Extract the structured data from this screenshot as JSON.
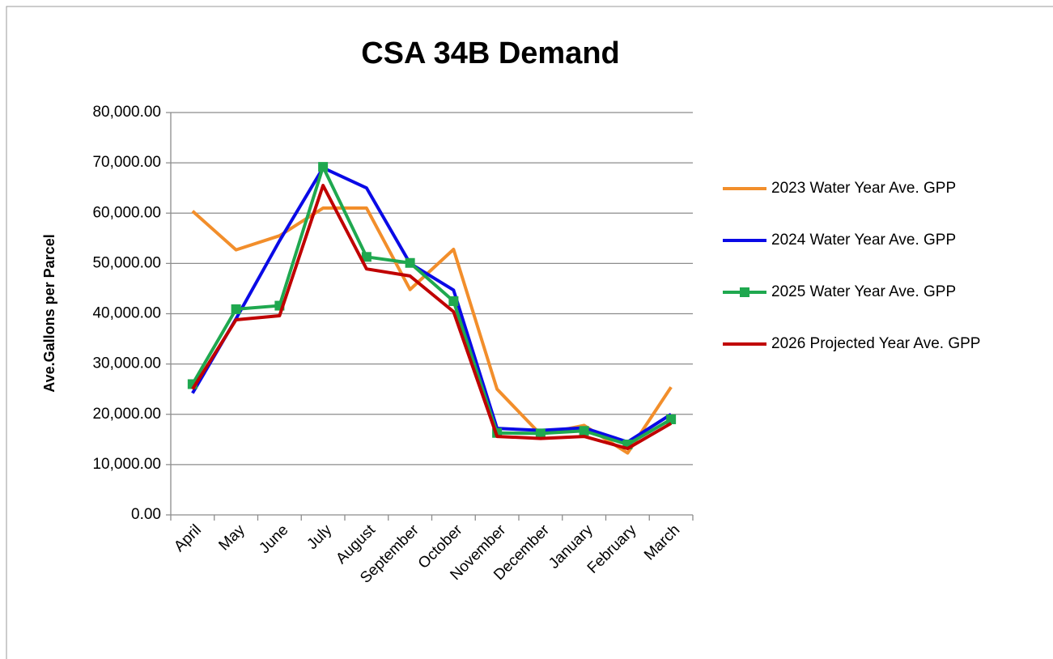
{
  "chart_data": {
    "type": "line",
    "title": "CSA 34B Demand",
    "y_label": "Ave.Gallons per Parcel",
    "categories": [
      "April",
      "May",
      "June",
      "July",
      "August",
      "September",
      "October",
      "November",
      "December",
      "January",
      "February",
      "March"
    ],
    "series": [
      {
        "name": "2023 Water Year Ave. GPP",
        "color": "#f28e2b",
        "marker": null,
        "values": [
          60400,
          52700,
          55500,
          61000,
          61000,
          44800,
          52800,
          25000,
          16000,
          17800,
          12300,
          25400
        ]
      },
      {
        "name": "2024 Water Year Ave. GPP",
        "color": "#0a0ae6",
        "marker": null,
        "values": [
          24200,
          39000,
          54500,
          69000,
          65000,
          50000,
          44700,
          17200,
          16800,
          17300,
          14500,
          20000
        ]
      },
      {
        "name": "2025 Water Year Ave. GPP",
        "color": "#1fa84f",
        "marker": "square",
        "values": [
          26000,
          40900,
          41600,
          69200,
          51300,
          50100,
          42500,
          16300,
          16200,
          16700,
          14000,
          19000
        ]
      },
      {
        "name": "2026 Projected Year Ave. GPP",
        "color": "#c00000",
        "marker": null,
        "values": [
          25000,
          38800,
          39600,
          65500,
          48900,
          47500,
          40400,
          15600,
          15200,
          15600,
          13200,
          18200
        ]
      }
    ],
    "ylim": [
      0,
      80000
    ],
    "yticks": [
      {
        "value": 0,
        "label": "0.00"
      },
      {
        "value": 10000,
        "label": "10,000.00"
      },
      {
        "value": 20000,
        "label": "20,000.00"
      },
      {
        "value": 30000,
        "label": "30,000.00"
      },
      {
        "value": 40000,
        "label": "40,000.00"
      },
      {
        "value": 50000,
        "label": "50,000.00"
      },
      {
        "value": 60000,
        "label": "60,000.00"
      },
      {
        "value": 70000,
        "label": "70,000.00"
      },
      {
        "value": 80000,
        "label": "80,000.00"
      }
    ],
    "grid": true,
    "legend": "right"
  }
}
